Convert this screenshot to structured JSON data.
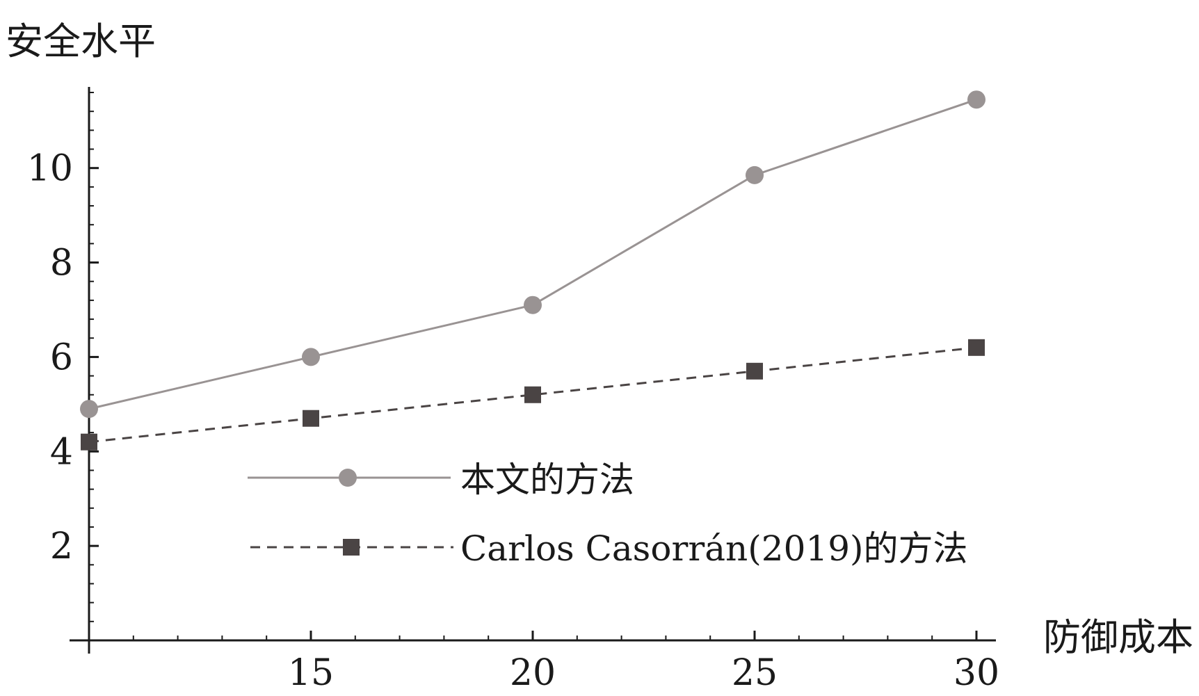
{
  "chart_data": {
    "type": "line",
    "xlabel": "防御成本",
    "ylabel": "安全水平",
    "xlim": [
      10,
      30
    ],
    "ylim": [
      0,
      11.6
    ],
    "x_ticks": [
      15,
      20,
      25,
      30
    ],
    "y_ticks": [
      2,
      4,
      6,
      8,
      10
    ],
    "x": [
      10,
      15,
      20,
      25,
      30
    ],
    "series": [
      {
        "name": "本文的方法",
        "values": [
          4.9,
          6.0,
          7.1,
          9.85,
          11.45
        ],
        "color": "#999393",
        "marker": "circle",
        "line_style": "solid"
      },
      {
        "name": "Carlos Casorrán(2019)的方法",
        "values": [
          4.2,
          4.7,
          5.2,
          5.7,
          6.2
        ],
        "color": "#4a4444",
        "marker": "square",
        "line_style": "dashed"
      }
    ],
    "legend_position": "center",
    "grid": false
  }
}
